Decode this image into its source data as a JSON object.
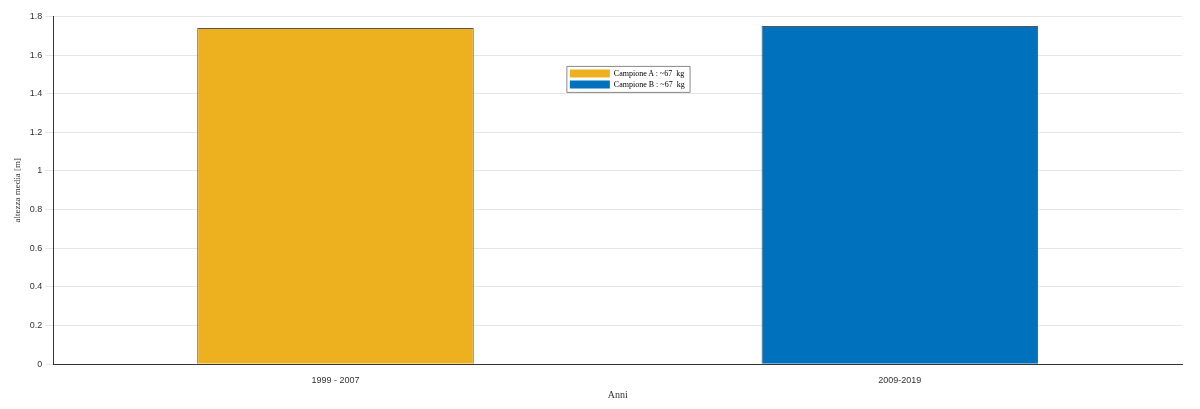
{
  "chart_data": {
    "type": "bar",
    "xlabel": "Anni",
    "ylabel": "altezza media [m]",
    "categories": [
      "1999 - 2007",
      "2009-2019"
    ],
    "series": [
      {
        "name": "Campione A : ~67  kg",
        "color": "#edb120",
        "values": [
          1.74,
          null
        ]
      },
      {
        "name": "Campione B : ~67  kg",
        "color": "#0072bd",
        "values": [
          null,
          1.75
        ]
      }
    ],
    "stacked": true,
    "ylim": [
      0,
      1.8
    ],
    "yticks": [
      0,
      0.2,
      0.4,
      0.6,
      0.8,
      1,
      1.2,
      1.4,
      1.6,
      1.8
    ],
    "grid": "y",
    "legend": "top"
  }
}
